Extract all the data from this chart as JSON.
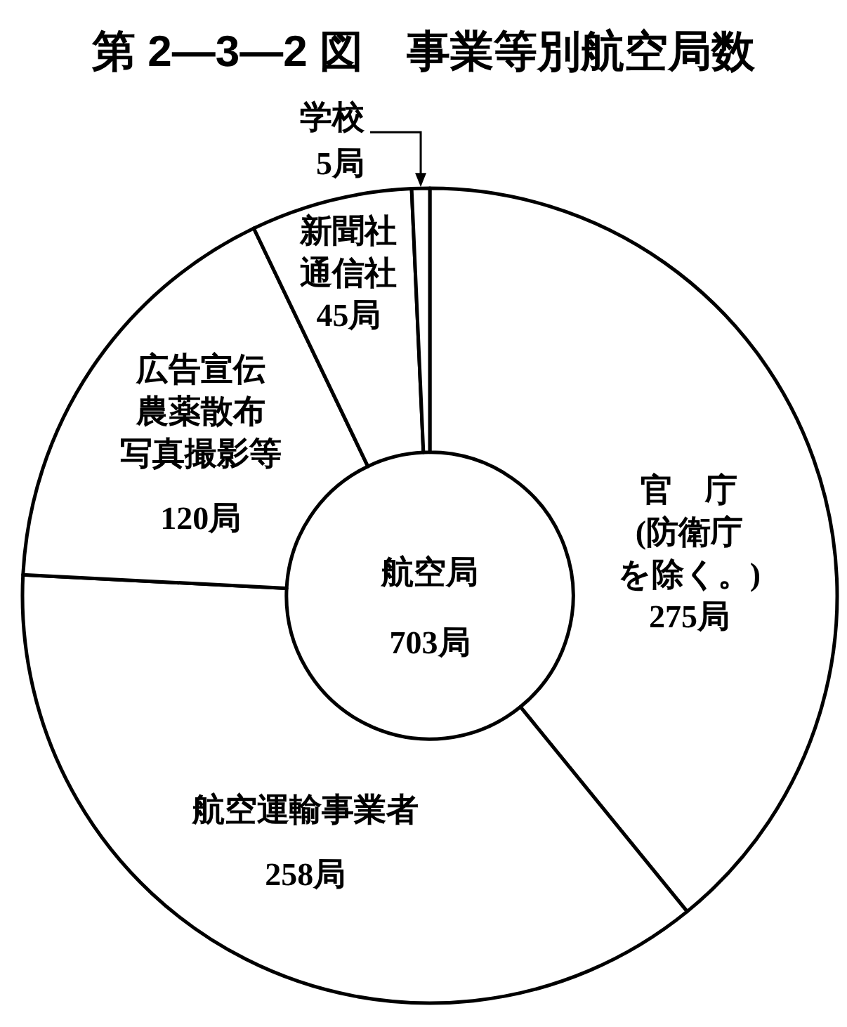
{
  "chart_data": {
    "type": "donut",
    "title": "第 2—3—2 図　事業等別航空局数",
    "categories": [
      "官　庁(防衛庁を除く。)",
      "航空運輸事業者",
      "広告宣伝農薬散布写真撮影等",
      "新聞社通信社",
      "学校"
    ],
    "values": [
      275,
      258,
      120,
      45,
      5
    ],
    "colors": [
      "#ffffff",
      "#ffffff",
      "#ffffff",
      "#ffffff",
      "#ffffff"
    ],
    "value_labels": [
      "275局",
      "258局",
      "120局",
      "45局",
      "5局"
    ],
    "annotations": [
      "航空局",
      "703局"
    ]
  }
}
